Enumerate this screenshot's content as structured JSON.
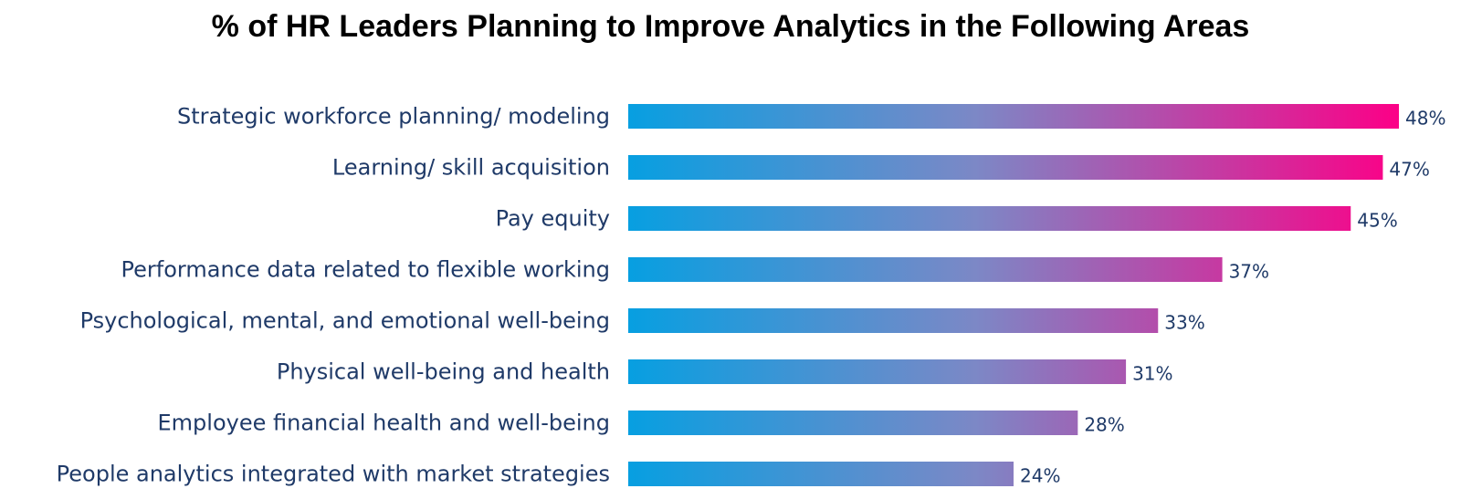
{
  "chart_data": {
    "type": "bar",
    "orientation": "horizontal",
    "title": "% of HR Leaders Planning to Improve Analytics in the Following Areas",
    "categories": [
      "Strategic workforce planning/ modeling",
      "Learning/ skill acquisition",
      "Pay equity",
      "Performance data related to flexible working",
      "Psychological, mental, and emotional well-being",
      "Physical well-being and health",
      "Employee financial health and well-being",
      "People analytics integrated with market strategies"
    ],
    "values": [
      48,
      47,
      45,
      37,
      33,
      31,
      28,
      24
    ],
    "value_labels": [
      "48%",
      "47%",
      "45%",
      "37%",
      "33%",
      "31%",
      "28%",
      "24%"
    ],
    "xlim": [
      0,
      48
    ],
    "grid": false,
    "legend": "none",
    "colors": {
      "gradient_start": "#079fe1",
      "gradient_end": "#fc0087",
      "text": "#1f3a68",
      "title": "#000000"
    }
  }
}
